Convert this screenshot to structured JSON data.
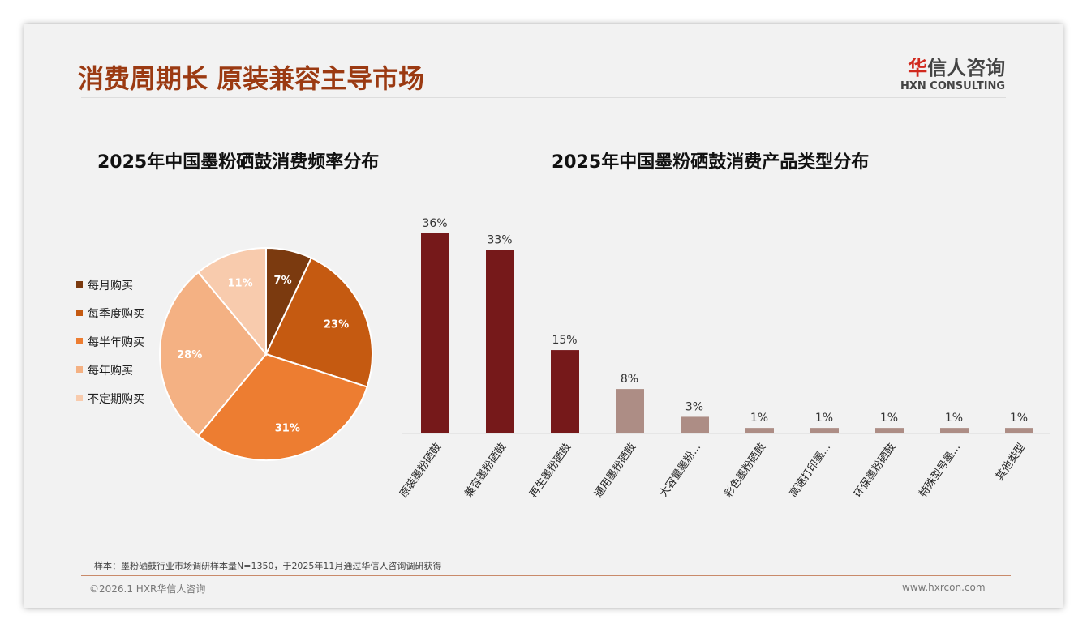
{
  "header": {
    "title": "消费周期长 原装兼容主导市场",
    "logo_cn_first": "华",
    "logo_cn_rest": "信人咨询",
    "logo_en": "HXN CONSULTING"
  },
  "chart_data": [
    {
      "type": "pie",
      "title": "2025年中国墨粉硒鼓消费频率分布",
      "categories": [
        "每月购买",
        "每季度购买",
        "每半年购买",
        "每年购买",
        "不定期购买"
      ],
      "values": [
        7,
        23,
        31,
        28,
        11
      ],
      "labels": [
        "7%",
        "23%",
        "31%",
        "28%",
        "11%"
      ],
      "colors": [
        "#7b3a0f",
        "#c55a11",
        "#ed7d31",
        "#f4b183",
        "#f8cbad"
      ],
      "legend": "left"
    },
    {
      "type": "bar",
      "title": "2025年中国墨粉硒鼓消费产品类型分布",
      "categories": [
        "原装墨粉硒鼓",
        "兼容墨粉硒鼓",
        "再生墨粉硒鼓",
        "通用墨粉硒鼓",
        "大容量墨粉...",
        "彩色墨粉硒鼓",
        "高速打印墨...",
        "环保墨粉硒鼓",
        "特殊型号墨...",
        "其他类型"
      ],
      "values": [
        36,
        33,
        15,
        8,
        3,
        1,
        1,
        1,
        1,
        1
      ],
      "labels": [
        "36%",
        "33%",
        "15%",
        "8%",
        "3%",
        "1%",
        "1%",
        "1%",
        "1%",
        "1%"
      ],
      "colors": [
        "#76191a",
        "#76191a",
        "#76191a",
        "#ad8d85",
        "#ad8d85",
        "#ad8d85",
        "#ad8d85",
        "#ad8d85",
        "#ad8d85",
        "#ad8d85"
      ],
      "ylim": [
        0,
        36
      ]
    }
  ],
  "footer": {
    "note": "样本：墨粉硒鼓行业市场调研样本量N=1350，于2025年11月通过华信人咨询调研获得",
    "copyright": "©2026.1 HXR华信人咨询",
    "website": "www.hxrcon.com"
  }
}
